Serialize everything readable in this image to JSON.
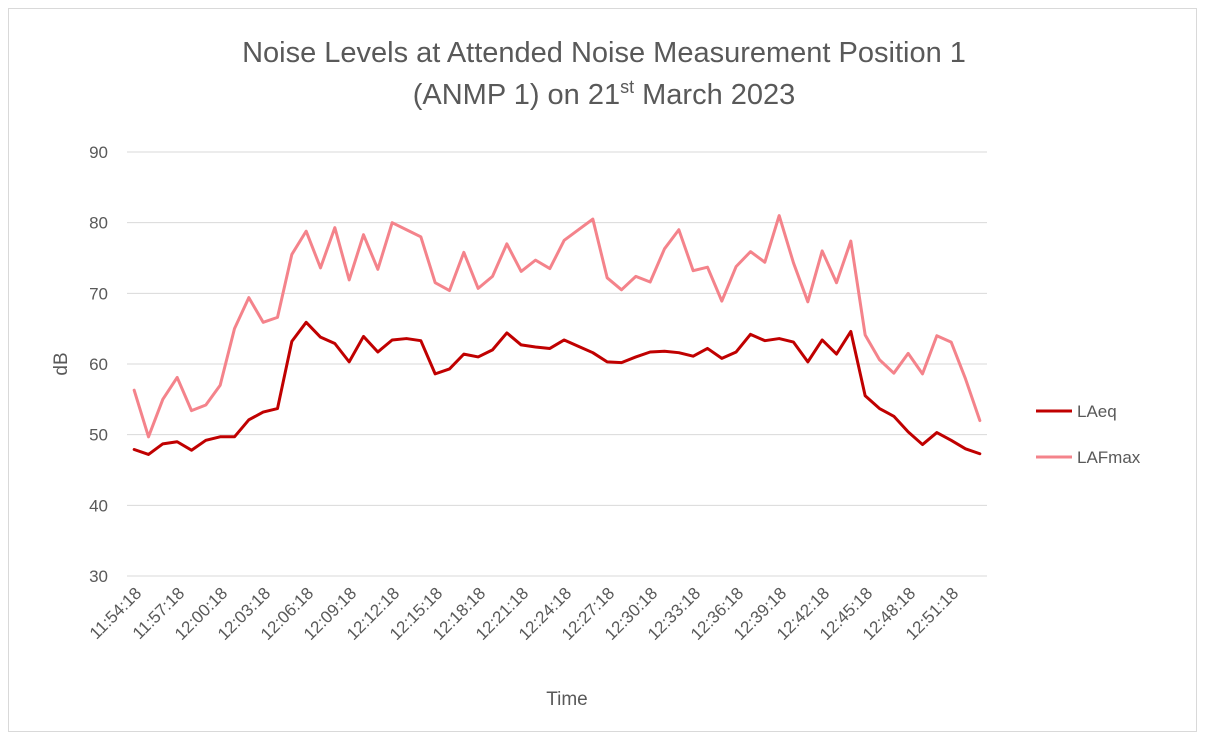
{
  "chart_data": {
    "type": "line",
    "title": [
      "Noise Levels at Attended Noise Measurement Position 1",
      "(ANMP 1) on 21",
      "st",
      "March 2023"
    ],
    "x_label": "Time",
    "y_label": "dB",
    "categories": [
      "11:54:18",
      null,
      null,
      "11:57:18",
      null,
      null,
      "12:00:18",
      null,
      null,
      "12:03:18",
      null,
      null,
      "12:06:18",
      null,
      null,
      "12:09:18",
      null,
      null,
      "12:12:18",
      null,
      null,
      "12:15:18",
      null,
      null,
      "12:18:18",
      null,
      null,
      "12:21:18",
      null,
      null,
      "12:24:18",
      null,
      null,
      "12:27:18",
      null,
      null,
      "12:30:18",
      null,
      null,
      "12:33:18",
      null,
      null,
      "12:36:18",
      null,
      null,
      "12:39:18",
      null,
      null,
      "12:42:18",
      null,
      null,
      "12:45:18",
      null,
      null,
      "12:48:18",
      null,
      null,
      "12:51:18",
      null,
      null
    ],
    "series": [
      {
        "name": "LAeq",
        "color": "#c00000",
        "values": [
          47.9,
          47.2,
          48.7,
          49.0,
          47.8,
          49.2,
          49.7,
          49.7,
          52.1,
          53.2,
          53.7,
          63.2,
          65.9,
          63.8,
          62.9,
          60.3,
          63.9,
          61.7,
          63.4,
          63.6,
          63.3,
          58.6,
          59.3,
          61.4,
          61.0,
          62.0,
          64.4,
          62.7,
          62.4,
          62.2,
          63.4,
          62.5,
          61.6,
          60.3,
          60.2,
          61.0,
          61.7,
          61.8,
          61.6,
          61.1,
          62.2,
          60.8,
          61.7,
          64.2,
          63.3,
          63.6,
          63.1,
          60.3,
          63.4,
          61.4,
          64.6,
          55.5,
          53.7,
          52.6,
          50.4,
          48.6,
          50.3,
          49.2,
          48.0,
          47.3
        ]
      },
      {
        "name": "LAFmax",
        "color": "#f4838b",
        "values": [
          56.3,
          49.7,
          55.0,
          58.1,
          53.4,
          54.2,
          57.0,
          65.0,
          69.4,
          65.9,
          66.6,
          75.5,
          78.8,
          73.6,
          79.3,
          71.9,
          78.3,
          73.4,
          80.0,
          79.0,
          78.0,
          71.5,
          70.4,
          75.8,
          70.7,
          72.4,
          77.0,
          73.1,
          74.7,
          73.5,
          77.5,
          79.0,
          80.5,
          72.2,
          70.5,
          72.4,
          71.6,
          76.3,
          79.0,
          73.2,
          73.7,
          68.9,
          73.8,
          75.9,
          74.4,
          81.0,
          74.3,
          68.8,
          76.0,
          71.5,
          77.4,
          64.1,
          60.6,
          58.7,
          61.5,
          58.6,
          64.0,
          63.1,
          57.9,
          52.0
        ]
      }
    ],
    "ylim": [
      30,
      90
    ],
    "yticks": [
      30,
      40,
      50,
      60,
      70,
      80,
      90
    ],
    "grid": true,
    "legend": "right"
  }
}
